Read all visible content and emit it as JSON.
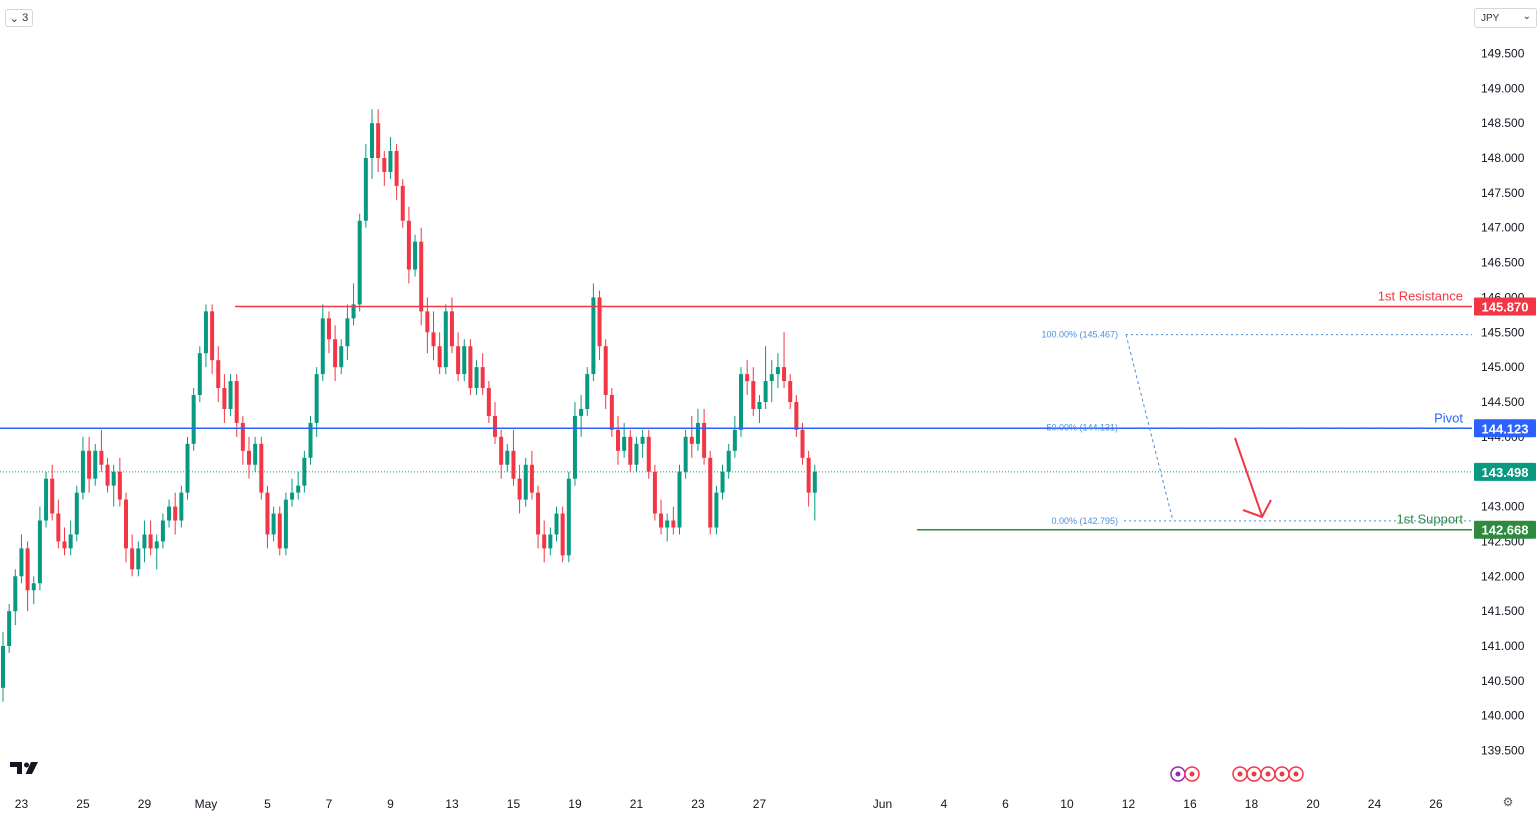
{
  "toolbar": {
    "collapse_label": "3",
    "currency": "JPY"
  },
  "chart_data": {
    "type": "candlestick",
    "symbol_currency": "JPY",
    "ylim": [
      139.25,
      149.75
    ],
    "y_ticks": [
      "139.500",
      "140.000",
      "140.500",
      "141.000",
      "141.500",
      "142.000",
      "142.500",
      "143.000",
      "143.500",
      "144.000",
      "144.500",
      "145.000",
      "145.500",
      "146.000",
      "146.500",
      "147.000",
      "147.500",
      "148.000",
      "148.500",
      "149.000",
      "149.500"
    ],
    "x_ticks": [
      {
        "label": "23",
        "i": 3
      },
      {
        "label": "25",
        "i": 13
      },
      {
        "label": "29",
        "i": 23
      },
      {
        "label": "May",
        "i": 33
      },
      {
        "label": "5",
        "i": 43
      },
      {
        "label": "7",
        "i": 53
      },
      {
        "label": "9",
        "i": 63
      },
      {
        "label": "13",
        "i": 73
      },
      {
        "label": "15",
        "i": 83
      },
      {
        "label": "19",
        "i": 93
      },
      {
        "label": "21",
        "i": 103
      },
      {
        "label": "23",
        "i": 113
      },
      {
        "label": "27",
        "i": 123
      },
      {
        "label": "Jun",
        "i": 143
      },
      {
        "label": "4",
        "i": 153
      },
      {
        "label": "6",
        "i": 163
      },
      {
        "label": "10",
        "i": 173
      },
      {
        "label": "12",
        "i": 183
      },
      {
        "label": "16",
        "i": 193
      },
      {
        "label": "18",
        "i": 203
      },
      {
        "label": "20",
        "i": 213
      },
      {
        "label": "24",
        "i": 223
      },
      {
        "label": "26",
        "i": 233
      }
    ],
    "candles": [
      [
        140.4,
        141.2,
        140.2,
        141.0
      ],
      [
        141.0,
        141.6,
        140.9,
        141.5
      ],
      [
        141.5,
        142.1,
        141.3,
        142.0
      ],
      [
        142.0,
        142.6,
        141.9,
        142.4
      ],
      [
        142.4,
        142.5,
        141.5,
        141.8
      ],
      [
        141.8,
        142.0,
        141.6,
        141.9
      ],
      [
        141.9,
        143.0,
        141.8,
        142.8
      ],
      [
        142.8,
        143.5,
        142.7,
        143.4
      ],
      [
        143.4,
        143.6,
        142.8,
        142.9
      ],
      [
        142.9,
        143.1,
        142.4,
        142.5
      ],
      [
        142.5,
        142.7,
        142.3,
        142.4
      ],
      [
        142.4,
        142.8,
        142.3,
        142.6
      ],
      [
        142.6,
        143.3,
        142.5,
        143.2
      ],
      [
        143.2,
        144.0,
        143.1,
        143.8
      ],
      [
        143.8,
        144.0,
        143.2,
        143.4
      ],
      [
        143.4,
        143.9,
        143.3,
        143.8
      ],
      [
        143.8,
        144.1,
        143.5,
        143.6
      ],
      [
        143.6,
        143.7,
        143.2,
        143.3
      ],
      [
        143.3,
        143.6,
        143.0,
        143.5
      ],
      [
        143.5,
        143.7,
        143.0,
        143.1
      ],
      [
        143.1,
        143.2,
        142.2,
        142.4
      ],
      [
        142.4,
        142.6,
        142.0,
        142.1
      ],
      [
        142.1,
        142.5,
        142.0,
        142.4
      ],
      [
        142.4,
        142.8,
        142.2,
        142.6
      ],
      [
        142.6,
        142.8,
        142.3,
        142.4
      ],
      [
        142.4,
        142.6,
        142.1,
        142.5
      ],
      [
        142.5,
        142.9,
        142.4,
        142.8
      ],
      [
        142.8,
        143.1,
        142.7,
        143.0
      ],
      [
        143.0,
        143.2,
        142.6,
        142.8
      ],
      [
        142.8,
        143.3,
        142.7,
        143.2
      ],
      [
        143.2,
        144.0,
        143.1,
        143.9
      ],
      [
        143.9,
        144.7,
        143.8,
        144.6
      ],
      [
        144.6,
        145.3,
        144.5,
        145.2
      ],
      [
        145.2,
        145.9,
        145.0,
        145.8
      ],
      [
        145.8,
        145.9,
        144.9,
        145.1
      ],
      [
        145.1,
        145.3,
        144.5,
        144.7
      ],
      [
        144.7,
        144.9,
        144.2,
        144.4
      ],
      [
        144.4,
        144.9,
        144.3,
        144.8
      ],
      [
        144.8,
        144.9,
        144.0,
        144.2
      ],
      [
        144.2,
        144.3,
        143.6,
        143.8
      ],
      [
        143.8,
        144.0,
        143.4,
        143.6
      ],
      [
        143.6,
        144.0,
        143.5,
        143.9
      ],
      [
        143.9,
        144.0,
        143.1,
        143.2
      ],
      [
        143.2,
        143.3,
        142.4,
        142.6
      ],
      [
        142.6,
        143.0,
        142.5,
        142.9
      ],
      [
        142.9,
        143.0,
        142.3,
        142.4
      ],
      [
        142.4,
        143.2,
        142.3,
        143.1
      ],
      [
        143.1,
        143.4,
        143.0,
        143.2
      ],
      [
        143.2,
        143.5,
        143.1,
        143.3
      ],
      [
        143.3,
        143.8,
        143.2,
        143.7
      ],
      [
        143.7,
        144.3,
        143.6,
        144.2
      ],
      [
        144.2,
        145.0,
        144.0,
        144.9
      ],
      [
        144.9,
        145.9,
        144.8,
        145.7
      ],
      [
        145.7,
        145.8,
        145.2,
        145.4
      ],
      [
        145.4,
        145.6,
        144.8,
        145.0
      ],
      [
        145.0,
        145.4,
        144.9,
        145.3
      ],
      [
        145.3,
        145.9,
        145.1,
        145.7
      ],
      [
        145.7,
        146.2,
        145.6,
        145.9
      ],
      [
        145.9,
        147.2,
        145.8,
        147.1
      ],
      [
        147.1,
        148.2,
        147.0,
        148.0
      ],
      [
        148.0,
        148.7,
        147.7,
        148.5
      ],
      [
        148.5,
        148.7,
        147.8,
        148.0
      ],
      [
        148.0,
        148.1,
        147.6,
        147.8
      ],
      [
        147.8,
        148.3,
        147.7,
        148.1
      ],
      [
        148.1,
        148.2,
        147.4,
        147.6
      ],
      [
        147.6,
        147.7,
        147.0,
        147.1
      ],
      [
        147.1,
        147.3,
        146.2,
        146.4
      ],
      [
        146.4,
        146.9,
        146.3,
        146.8
      ],
      [
        146.8,
        147.0,
        145.6,
        145.8
      ],
      [
        145.8,
        146.0,
        145.2,
        145.5
      ],
      [
        145.5,
        145.8,
        145.1,
        145.3
      ],
      [
        145.3,
        145.5,
        144.9,
        145.0
      ],
      [
        145.0,
        145.9,
        144.9,
        145.8
      ],
      [
        145.8,
        146.0,
        145.2,
        145.3
      ],
      [
        145.3,
        145.5,
        144.8,
        144.9
      ],
      [
        144.9,
        145.4,
        144.8,
        145.3
      ],
      [
        145.3,
        145.4,
        144.6,
        144.7
      ],
      [
        144.7,
        145.1,
        144.6,
        145.0
      ],
      [
        145.0,
        145.2,
        144.6,
        144.7
      ],
      [
        144.7,
        144.8,
        144.2,
        144.3
      ],
      [
        144.3,
        144.5,
        143.9,
        144.0
      ],
      [
        144.0,
        144.1,
        143.4,
        143.6
      ],
      [
        143.6,
        143.9,
        143.5,
        143.8
      ],
      [
        143.8,
        144.1,
        143.3,
        143.4
      ],
      [
        143.4,
        143.6,
        142.9,
        143.1
      ],
      [
        143.1,
        143.7,
        143.0,
        143.6
      ],
      [
        143.6,
        143.8,
        143.1,
        143.2
      ],
      [
        143.2,
        143.3,
        142.4,
        142.6
      ],
      [
        142.6,
        142.8,
        142.2,
        142.4
      ],
      [
        142.4,
        142.7,
        142.3,
        142.6
      ],
      [
        142.6,
        143.0,
        142.5,
        142.9
      ],
      [
        142.9,
        143.0,
        142.2,
        142.3
      ],
      [
        142.3,
        143.5,
        142.2,
        143.4
      ],
      [
        143.4,
        144.5,
        143.3,
        144.3
      ],
      [
        144.3,
        144.6,
        144.0,
        144.4
      ],
      [
        144.4,
        145.0,
        144.3,
        144.9
      ],
      [
        144.9,
        146.2,
        144.8,
        146.0
      ],
      [
        146.0,
        146.1,
        145.1,
        145.3
      ],
      [
        145.3,
        145.4,
        144.4,
        144.6
      ],
      [
        144.6,
        144.7,
        144.0,
        144.1
      ],
      [
        144.1,
        144.3,
        143.6,
        143.8
      ],
      [
        143.8,
        144.2,
        143.7,
        144.0
      ],
      [
        144.0,
        144.1,
        143.5,
        143.6
      ],
      [
        143.6,
        144.0,
        143.5,
        143.9
      ],
      [
        143.9,
        144.1,
        143.7,
        144.0
      ],
      [
        144.0,
        144.1,
        143.4,
        143.5
      ],
      [
        143.5,
        143.6,
        142.8,
        142.9
      ],
      [
        142.9,
        143.1,
        142.6,
        142.7
      ],
      [
        142.7,
        142.9,
        142.5,
        142.8
      ],
      [
        142.8,
        143.0,
        142.6,
        142.7
      ],
      [
        142.7,
        143.6,
        142.6,
        143.5
      ],
      [
        143.5,
        144.1,
        143.4,
        144.0
      ],
      [
        144.0,
        144.3,
        143.7,
        143.9
      ],
      [
        143.9,
        144.4,
        143.8,
        144.2
      ],
      [
        144.2,
        144.4,
        143.6,
        143.7
      ],
      [
        143.7,
        143.8,
        142.6,
        142.7
      ],
      [
        142.7,
        143.3,
        142.6,
        143.2
      ],
      [
        143.2,
        143.6,
        143.1,
        143.5
      ],
      [
        143.5,
        143.9,
        143.4,
        143.8
      ],
      [
        143.8,
        144.3,
        143.7,
        144.1
      ],
      [
        144.1,
        145.0,
        144.0,
        144.9
      ],
      [
        144.9,
        145.1,
        144.6,
        144.8
      ],
      [
        144.8,
        145.0,
        144.3,
        144.4
      ],
      [
        144.4,
        144.6,
        144.2,
        144.5
      ],
      [
        144.5,
        145.3,
        144.4,
        144.8
      ],
      [
        144.8,
        145.1,
        144.5,
        144.9
      ],
      [
        144.9,
        145.2,
        144.7,
        145.0
      ],
      [
        145.0,
        145.5,
        144.7,
        144.8
      ],
      [
        144.8,
        144.9,
        144.4,
        144.5
      ],
      [
        144.5,
        144.6,
        144.0,
        144.1
      ],
      [
        144.1,
        144.2,
        143.6,
        143.7
      ],
      [
        143.7,
        143.8,
        143.0,
        143.2
      ],
      [
        143.2,
        143.6,
        142.8,
        143.5
      ]
    ],
    "levels": [
      {
        "label": "1st Resistance",
        "value": 145.87,
        "price_label": "145.870",
        "color": "#f23645"
      },
      {
        "label": "Pivot",
        "value": 144.123,
        "price_label": "144.123",
        "color": "#2962ff"
      },
      {
        "label": "1st Support",
        "value": 142.668,
        "price_label": "142.668",
        "color": "#2e8b3e"
      }
    ],
    "current_price": {
      "value": 143.498,
      "price_label": "143.498",
      "color": "#089981"
    },
    "fibonacci": [
      {
        "label": "100.00% (145.467)",
        "value": 145.467
      },
      {
        "label": "50.00% (144.131)",
        "value": 144.131
      },
      {
        "label": "0.00% (142.795)",
        "value": 142.795
      }
    ],
    "colors": {
      "up": "#089981",
      "down": "#f23645",
      "fib": "#4a8fdc",
      "arrow": "#f23645"
    },
    "grid": false
  }
}
